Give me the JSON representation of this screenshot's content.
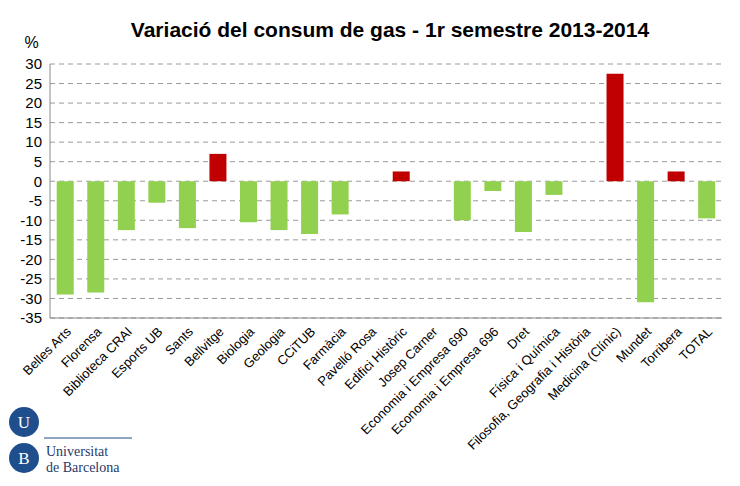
{
  "chart_data": {
    "type": "bar",
    "title": "Variació del consum de gas - 1r semestre 2013-2014",
    "y_label": "%",
    "categories": [
      "Belles Arts",
      "Florensa",
      "Biblioteca CRAI",
      "Esports UB",
      "Sants",
      "Bellvitge",
      "Biologia",
      "Geologia",
      "CCiTUB",
      "Farmàcia",
      "Pavelló Rosa",
      "Edifici Històric",
      "Josep Carner",
      "Economia i Empresa 690",
      "Economia i Empresa 696",
      "Dret",
      "Física i Química",
      "Filosofia, Geografia i Història",
      "Medicina (Clínic)",
      "Mundet",
      "Torribera",
      "TOTAL"
    ],
    "values": [
      -29,
      -28.5,
      -12.5,
      -5.5,
      -12,
      7,
      -10.5,
      -12.5,
      -13.5,
      -8.5,
      0,
      2.5,
      0,
      -10,
      -2.5,
      -13,
      -3.5,
      0,
      27.5,
      -31,
      2.5,
      -9.5
    ],
    "colors": [
      "#92d050",
      "#92d050",
      "#92d050",
      "#92d050",
      "#92d050",
      "#c00000",
      "#92d050",
      "#92d050",
      "#92d050",
      "#92d050",
      "#92d050",
      "#c00000",
      "#92d050",
      "#92d050",
      "#92d050",
      "#92d050",
      "#92d050",
      "#92d050",
      "#c00000",
      "#92d050",
      "#c00000",
      "#92d050"
    ],
    "ylim": [
      -35,
      30
    ],
    "yticks": [
      -35,
      -30,
      -25,
      -20,
      -15,
      -10,
      -5,
      0,
      5,
      10,
      15,
      20,
      25,
      30
    ],
    "grid": true,
    "annotations": [
      "U",
      "B",
      "Universitat",
      "de Barcelona"
    ]
  }
}
